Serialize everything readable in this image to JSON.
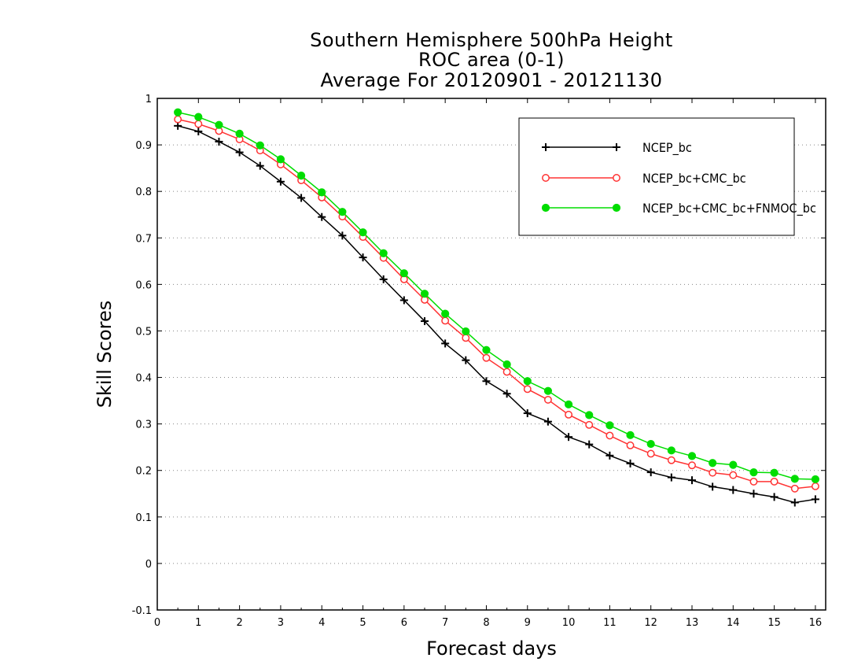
{
  "chart_data": {
    "type": "line",
    "title": [
      "Southern Hemisphere 500hPa Height",
      "ROC area (0-1)",
      "Average For 20120901 - 20121130"
    ],
    "xlabel": "Forecast days",
    "ylabel": "Skill Scores",
    "xlim": [
      0,
      16.25
    ],
    "ylim": [
      -0.1,
      1
    ],
    "xticks": [
      0,
      1,
      2,
      3,
      4,
      5,
      6,
      7,
      8,
      9,
      10,
      11,
      12,
      13,
      14,
      15,
      16
    ],
    "yticks": [
      -0.1,
      0,
      0.1,
      0.2,
      0.3,
      0.4,
      0.5,
      0.6,
      0.7,
      0.8,
      0.9,
      1
    ],
    "ytick_labels": [
      "-0.1",
      "0",
      "0.1",
      "0.2",
      "0.3",
      "0.4",
      "0.5",
      "0.6",
      "0.7",
      "0.8",
      "0.9",
      "1"
    ],
    "grid": "horizontal dotted",
    "legend_position": "top-right",
    "x": [
      0.5,
      1,
      1.5,
      2,
      2.5,
      3,
      3.5,
      4,
      4.5,
      5,
      5.5,
      6,
      6.5,
      7,
      7.5,
      8,
      8.5,
      9,
      9.5,
      10,
      10.5,
      11,
      11.5,
      12,
      12.5,
      13,
      13.5,
      14,
      14.5,
      15,
      15.5,
      16
    ],
    "series": [
      {
        "name": "NCEP_bc",
        "color": "#000000",
        "marker": "plus",
        "values": [
          0.941,
          0.929,
          0.907,
          0.884,
          0.855,
          0.821,
          0.786,
          0.745,
          0.705,
          0.658,
          0.611,
          0.566,
          0.521,
          0.473,
          0.437,
          0.392,
          0.365,
          0.323,
          0.305,
          0.272,
          0.256,
          0.232,
          0.215,
          0.196,
          0.185,
          0.179,
          0.165,
          0.158,
          0.15,
          0.143,
          0.131,
          0.138
        ]
      },
      {
        "name": "NCEP_bc+CMC_bc",
        "color": "#ff3333",
        "marker": "open-circle",
        "values": [
          0.955,
          0.945,
          0.93,
          0.912,
          0.888,
          0.858,
          0.824,
          0.787,
          0.746,
          0.702,
          0.657,
          0.611,
          0.567,
          0.522,
          0.485,
          0.442,
          0.412,
          0.375,
          0.352,
          0.32,
          0.298,
          0.275,
          0.254,
          0.236,
          0.222,
          0.211,
          0.195,
          0.19,
          0.176,
          0.176,
          0.161,
          0.166
        ]
      },
      {
        "name": "NCEP_bc+CMC_bc+FNMOC_bc",
        "color": "#00dd00",
        "marker": "filled-circle",
        "values": [
          0.97,
          0.96,
          0.943,
          0.924,
          0.899,
          0.869,
          0.834,
          0.798,
          0.756,
          0.712,
          0.667,
          0.624,
          0.58,
          0.537,
          0.499,
          0.459,
          0.428,
          0.392,
          0.371,
          0.342,
          0.319,
          0.297,
          0.276,
          0.257,
          0.243,
          0.231,
          0.216,
          0.212,
          0.196,
          0.195,
          0.182,
          0.181
        ]
      }
    ]
  }
}
